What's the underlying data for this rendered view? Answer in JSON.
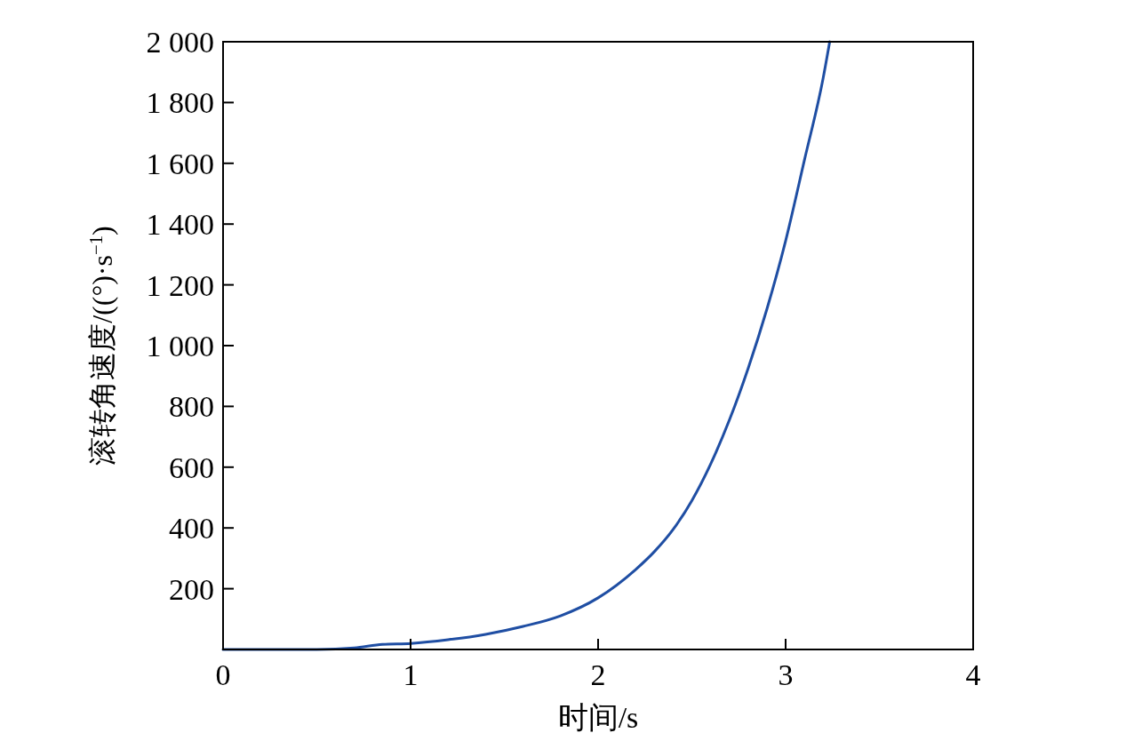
{
  "chart_data": {
    "type": "line",
    "xlabel": "时间/s",
    "ylabel": "滚转角速度/((°)·s$^{−1}$)",
    "x": [
      0,
      0.5,
      0.7,
      0.85,
      1,
      1.2,
      1.4,
      1.6,
      1.8,
      2,
      2.2,
      2.3,
      2.4,
      2.5,
      2.6,
      2.7,
      2.8,
      2.9,
      3,
      3.1,
      3.2,
      3.235
    ],
    "series": [
      {
        "color": "#1f4ea3",
        "values": [
          0,
          0,
          5,
          17,
          20,
          32,
          50,
          76,
          111,
          170,
          263,
          322,
          395,
          490,
          610,
          755,
          925,
          1120,
          1345,
          1610,
          1880,
          2000
        ]
      }
    ],
    "xlim": [
      0,
      4
    ],
    "ylim": [
      0,
      2000
    ],
    "xticks": [
      0,
      1,
      2,
      3,
      4
    ],
    "yticks": [
      {
        "value": 0,
        "label": null
      },
      {
        "value": 200,
        "label": "200"
      },
      {
        "value": 400,
        "label": "400"
      },
      {
        "value": 600,
        "label": "600"
      },
      {
        "value": 800,
        "label": "800"
      },
      {
        "value": 1000,
        "label": "1 000"
      },
      {
        "value": 1200,
        "label": "1 200"
      },
      {
        "value": 1400,
        "label": "1 400"
      },
      {
        "value": 1600,
        "label": "1 600"
      },
      {
        "value": 1800,
        "label": "1 800"
      },
      {
        "value": 2000,
        "label": "2 000"
      }
    ],
    "grid": false,
    "marker": "none",
    "line_style": "solid"
  }
}
